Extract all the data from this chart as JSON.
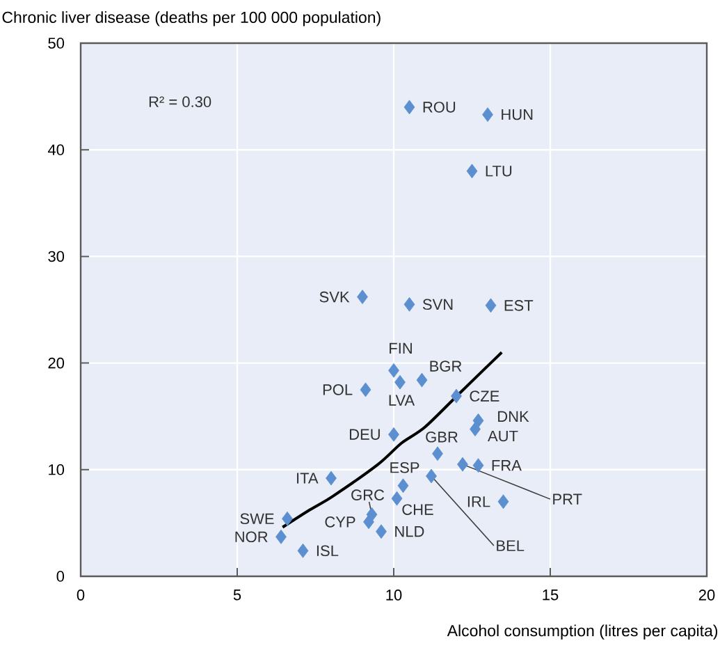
{
  "chart_data": {
    "type": "scatter",
    "xlabel": "Alcohol consumption (litres per capita)",
    "ylabel": "Chronic liver disease (deaths per 100 000 population)",
    "xlim": [
      0,
      20
    ],
    "xticks": [
      0,
      5,
      10,
      15,
      20
    ],
    "ylim": [
      0,
      50
    ],
    "yticks": [
      0,
      10,
      20,
      30,
      40,
      50
    ],
    "grid": true,
    "marker": "diamond",
    "series": [
      {
        "color": "#5b8fd0",
        "x": [
          10.5,
          13.0,
          12.5,
          9.0,
          10.5,
          13.1,
          10.0,
          10.2,
          10.9,
          9.1,
          12.0,
          12.7,
          12.6,
          10.0,
          11.4,
          12.2,
          12.7,
          8.0,
          11.2,
          10.3,
          10.1,
          13.5,
          9.3,
          9.2,
          9.6,
          6.6,
          6.4,
          7.1
        ],
        "values": [
          44.0,
          43.3,
          38.0,
          26.2,
          25.5,
          25.4,
          19.3,
          18.2,
          18.4,
          17.5,
          16.9,
          14.6,
          13.8,
          13.3,
          11.5,
          10.5,
          10.4,
          9.2,
          9.4,
          8.5,
          7.3,
          7.0,
          5.8,
          5.1,
          4.2,
          5.4,
          3.7,
          2.4
        ]
      },
      {
        "type": "line",
        "color": "#000000",
        "line_style": "solid",
        "marker": "none",
        "x": [
          6.45,
          7.3,
          8.05,
          9.5,
          10.25,
          11.0,
          12.15,
          13.45
        ],
        "values": [
          4.6,
          6.2,
          7.5,
          10.5,
          12.5,
          14.0,
          17.3,
          21.0
        ]
      }
    ],
    "annotations": [
      "R² = 0.30",
      {
        "text": "ROU",
        "x": 10.5,
        "y": 44.0
      },
      {
        "text": "HUN",
        "x": 13.0,
        "y": 43.3
      },
      {
        "text": "LTU",
        "x": 12.5,
        "y": 38.0
      },
      {
        "text": "SVK",
        "x": 9.0,
        "y": 26.2
      },
      {
        "text": "SVN",
        "x": 10.5,
        "y": 25.5
      },
      {
        "text": "EST",
        "x": 13.1,
        "y": 25.4
      },
      {
        "text": "FIN",
        "x": 10.0,
        "y": 19.3
      },
      {
        "text": "LVA",
        "x": 10.2,
        "y": 18.2
      },
      {
        "text": "BGR",
        "x": 10.9,
        "y": 18.4
      },
      {
        "text": "POL",
        "x": 9.1,
        "y": 17.5
      },
      {
        "text": "CZE",
        "x": 12.0,
        "y": 16.9
      },
      {
        "text": "DNK",
        "x": 12.7,
        "y": 14.6
      },
      {
        "text": "AUT",
        "x": 12.6,
        "y": 13.8
      },
      {
        "text": "DEU",
        "x": 10.0,
        "y": 13.3
      },
      {
        "text": "GBR",
        "x": 11.4,
        "y": 11.5
      },
      {
        "text": "PRT",
        "x": 12.2,
        "y": 10.5
      },
      {
        "text": "FRA",
        "x": 12.7,
        "y": 10.4
      },
      {
        "text": "ITA",
        "x": 8.0,
        "y": 9.2
      },
      {
        "text": "BEL",
        "x": 11.2,
        "y": 9.4
      },
      {
        "text": "ESP",
        "x": 10.3,
        "y": 8.5
      },
      {
        "text": "CHE",
        "x": 10.1,
        "y": 7.3
      },
      {
        "text": "IRL",
        "x": 13.5,
        "y": 7.0
      },
      {
        "text": "GRC",
        "x": 9.3,
        "y": 5.8
      },
      {
        "text": "CYP",
        "x": 9.2,
        "y": 5.1
      },
      {
        "text": "NLD",
        "x": 9.6,
        "y": 4.2
      },
      {
        "text": "SWE",
        "x": 6.6,
        "y": 5.4
      },
      {
        "text": "NOR",
        "x": 6.4,
        "y": 3.7
      },
      {
        "text": "ISL",
        "x": 7.1,
        "y": 2.4
      }
    ]
  }
}
